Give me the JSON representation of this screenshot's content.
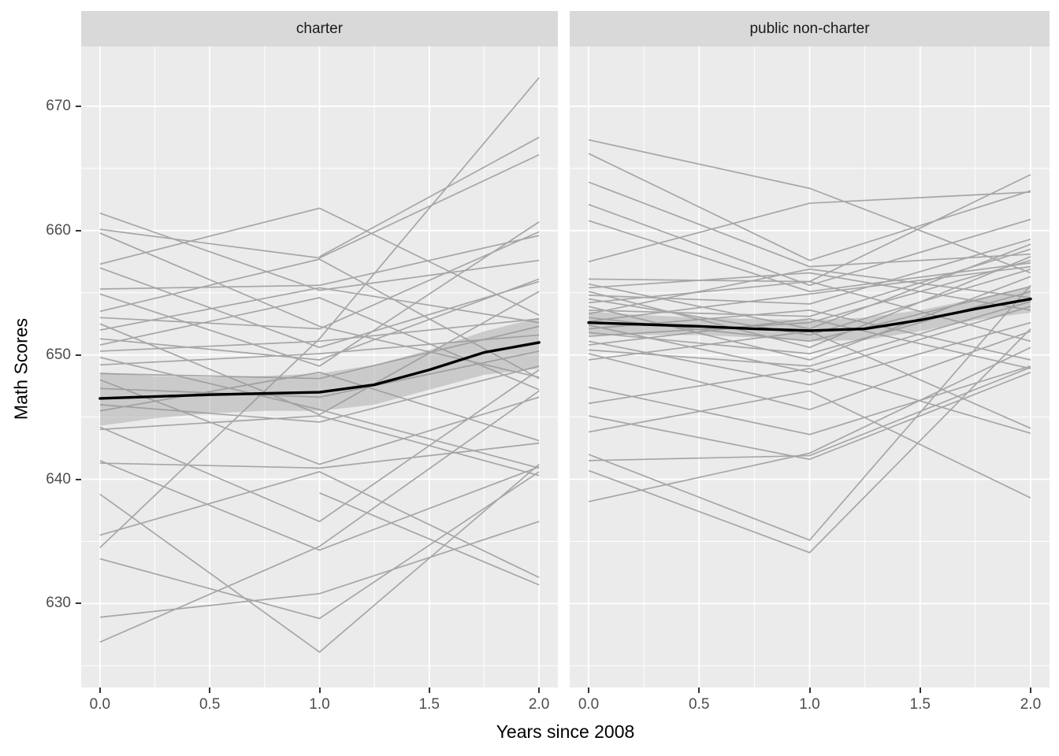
{
  "chart_data": {
    "type": "line",
    "title": "",
    "xlabel": "Years since 2008",
    "ylabel": "Math Scores",
    "legend": "none",
    "grid": "on",
    "x_ticks": {
      "values": [
        0.0,
        0.5,
        1.0,
        1.5,
        2.0
      ],
      "labels": [
        "0.0",
        "0.5",
        "1.0",
        "1.5",
        "2.0"
      ]
    },
    "y_ticks": {
      "values": [
        630,
        640,
        650,
        660,
        670
      ],
      "labels": [
        "630",
        "640",
        "650",
        "660",
        "670"
      ]
    },
    "x_minor": [
      0.25,
      0.75,
      1.25,
      1.75
    ],
    "y_minor": [
      625,
      635,
      645,
      655,
      665
    ],
    "xlim": [
      -0.0857,
      2.0857
    ],
    "ylim": [
      623.25,
      674.81
    ],
    "styles": {
      "panel_bg": "#EBEBEB",
      "strip_bg": "#D9D9D9",
      "grid_color": "#FFFFFF",
      "trajectory_color": "#A6A6A6",
      "smooth_color": "#000000",
      "ribbon_color": "#999999",
      "ribbon_opacity": 0.4,
      "tick_color": "#333333",
      "tick_label_color": "#4D4D4D"
    },
    "facets": [
      {
        "label": "charter",
        "smooth": {
          "x": [
            0,
            0.25,
            0.5,
            0.75,
            1.0,
            1.25,
            1.5,
            1.75,
            2.0
          ],
          "y": [
            646.5,
            646.65,
            646.8,
            646.9,
            647.0,
            647.6,
            648.8,
            650.2,
            651.0
          ],
          "upper": [
            648.6,
            648.3,
            648.2,
            648.3,
            648.5,
            649.2,
            650.4,
            651.9,
            653.0
          ],
          "lower": [
            644.3,
            644.9,
            645.3,
            645.5,
            645.5,
            646.0,
            647.2,
            648.4,
            648.9
          ]
        },
        "lines": [
          {
            "x": [
              0,
              1,
              2
            ],
            "y": [
              661.4,
              655.2,
              657.6
            ]
          },
          {
            "x": [
              0,
              1,
              2
            ],
            "y": [
              660.1,
              657.8,
              666.1
            ]
          },
          {
            "x": [
              0,
              1,
              2
            ],
            "y": [
              659.8,
              652.3,
              648.2
            ]
          },
          {
            "x": [
              0,
              1,
              2
            ],
            "y": [
              657.3,
              661.8,
              653.2
            ]
          },
          {
            "x": [
              0,
              1,
              2
            ],
            "y": [
              657.0,
              650.6,
              655.9
            ]
          },
          {
            "x": [
              0,
              1,
              2
            ],
            "y": [
              655.3,
              655.6,
              659.6
            ]
          },
          {
            "x": [
              0,
              1,
              2
            ],
            "y": [
              654.9,
              649.1,
              660.7
            ]
          },
          {
            "x": [
              0,
              1,
              2
            ],
            "y": [
              653.5,
              657.7,
              648.1
            ]
          },
          {
            "x": [
              0,
              1,
              2
            ],
            "y": [
              653.0,
              652.1,
              659.9
            ]
          },
          {
            "x": [
              0,
              1,
              2
            ],
            "y": [
              652.5,
              645.2,
              655.1
            ]
          },
          {
            "x": [
              0,
              1,
              2
            ],
            "y": [
              652.0,
              655.4,
              652.6
            ]
          },
          {
            "x": [
              0,
              1,
              2
            ],
            "y": [
              651.3,
              649.6,
              656.1
            ]
          },
          {
            "x": [
              0,
              1,
              2
            ],
            "y": [
              650.8,
              654.6,
              647.2
            ]
          },
          {
            "x": [
              0,
              1,
              2
            ],
            "y": [
              650.3,
              651.1,
              652.9
            ]
          },
          {
            "x": [
              0,
              1,
              2
            ],
            "y": [
              649.8,
              645.6,
              640.9
            ]
          },
          {
            "x": [
              0,
              1,
              2
            ],
            "y": [
              649.2,
              650.1,
              651.6
            ]
          },
          {
            "x": [
              0,
              1,
              2
            ],
            "y": [
              648.5,
              648.1,
              652.3
            ]
          },
          {
            "x": [
              0,
              1,
              2
            ],
            "y": [
              648.0,
              641.2,
              646.6
            ]
          },
          {
            "x": [
              0,
              1,
              2
            ],
            "y": [
              647.3,
              646.6,
              650.3
            ]
          },
          {
            "x": [
              0,
              1,
              2
            ],
            "y": [
              646.0,
              644.6,
              649.1
            ]
          },
          {
            "x": [
              0,
              1,
              2
            ],
            "y": [
              645.5,
              648.6,
              643.1
            ]
          },
          {
            "x": [
              0,
              1,
              2
            ],
            "y": [
              644.2,
              636.6,
              648.8
            ]
          },
          {
            "x": [
              0,
              1,
              2
            ],
            "y": [
              644.0,
              645.1,
              640.3
            ]
          },
          {
            "x": [
              0,
              1,
              2
            ],
            "y": [
              641.5,
              634.3,
              641.0
            ]
          },
          {
            "x": [
              0,
              1,
              2
            ],
            "y": [
              641.3,
              640.9,
              642.9
            ]
          },
          {
            "x": [
              0,
              1,
              2
            ],
            "y": [
              638.8,
              626.1,
              641.2
            ]
          },
          {
            "x": [
              0,
              1,
              2
            ],
            "y": [
              635.5,
              640.6,
              632.1
            ]
          },
          {
            "x": [
              0,
              1,
              2
            ],
            "y": [
              634.5,
              651.3,
              672.3
            ]
          },
          {
            "x": [
              0,
              1,
              2
            ],
            "y": [
              633.6,
              628.8,
              640.6
            ]
          },
          {
            "x": [
              0,
              1,
              2
            ],
            "y": [
              628.9,
              630.8,
              636.6
            ]
          },
          {
            "x": [
              0,
              1,
              2
            ],
            "y": [
              626.9,
              634.6,
              647.1
            ]
          },
          {
            "x": [
              1,
              2
            ],
            "y": [
              638.9,
              631.5
            ]
          },
          {
            "x": [
              1,
              2
            ],
            "y": [
              657.9,
              667.5
            ]
          }
        ]
      },
      {
        "label": "public non-charter",
        "smooth": {
          "x": [
            0,
            0.25,
            0.5,
            0.75,
            1.0,
            1.25,
            1.5,
            1.75,
            2.0
          ],
          "y": [
            652.6,
            652.45,
            652.3,
            652.1,
            651.95,
            652.1,
            652.8,
            653.7,
            654.5
          ],
          "upper": [
            653.5,
            653.2,
            653.0,
            652.9,
            652.8,
            653.0,
            653.6,
            654.5,
            655.5
          ],
          "lower": [
            651.6,
            651.6,
            651.6,
            651.4,
            651.1,
            651.2,
            651.9,
            652.8,
            653.4
          ]
        },
        "lines": [
          {
            "x": [
              0,
              1,
              2
            ],
            "y": [
              667.3,
              663.4,
              656.6
            ]
          },
          {
            "x": [
              0,
              1,
              2
            ],
            "y": [
              666.2,
              657.6,
              663.2
            ]
          },
          {
            "x": [
              0,
              1,
              2
            ],
            "y": [
              663.9,
              657.1,
              658.1
            ]
          },
          {
            "x": [
              0,
              1,
              2
            ],
            "y": [
              662.1,
              655.6,
              660.9
            ]
          },
          {
            "x": [
              0,
              1,
              2
            ],
            "y": [
              660.8,
              655.1,
              657.4
            ]
          },
          {
            "x": [
              0,
              1,
              2
            ],
            "y": [
              657.5,
              662.2,
              663.1
            ]
          },
          {
            "x": [
              0,
              1,
              2
            ],
            "y": [
              656.1,
              655.9,
              664.5
            ]
          },
          {
            "x": [
              0,
              1,
              2
            ],
            "y": [
              655.7,
              652.1,
              658.9
            ]
          },
          {
            "x": [
              0,
              1,
              2
            ],
            "y": [
              655.4,
              656.6,
              653.6
            ]
          },
          {
            "x": [
              0,
              1,
              2
            ],
            "y": [
              655.1,
              650.6,
              657.9
            ]
          },
          {
            "x": [
              0,
              1,
              2
            ],
            "y": [
              654.8,
              654.1,
              659.3
            ]
          },
          {
            "x": [
              0,
              1,
              2
            ],
            "y": [
              654.5,
              651.6,
              656.9
            ]
          },
          {
            "x": [
              0,
              1,
              2
            ],
            "y": [
              654.2,
              655.9,
              651.1
            ]
          },
          {
            "x": [
              0,
              1,
              2
            ],
            "y": [
              653.9,
              649.6,
              656.3
            ]
          },
          {
            "x": [
              0,
              1,
              2
            ],
            "y": [
              653.6,
              653.1,
              658.5
            ]
          },
          {
            "x": [
              0,
              1,
              2
            ],
            "y": [
              653.3,
              656.9,
              654.6
            ]
          },
          {
            "x": [
              0,
              1,
              2
            ],
            "y": [
              653.0,
              651.1,
              655.5
            ]
          },
          {
            "x": [
              0,
              1,
              2
            ],
            "y": [
              652.7,
              654.9,
              657.1
            ]
          },
          {
            "x": [
              0,
              1,
              2
            ],
            "y": [
              652.4,
              648.6,
              653.9
            ]
          },
          {
            "x": [
              0,
              1,
              2
            ],
            "y": [
              652.1,
              653.6,
              649.6
            ]
          },
          {
            "x": [
              0,
              1,
              2
            ],
            "y": [
              651.8,
              650.1,
              655.1
            ]
          },
          {
            "x": [
              0,
              1,
              2
            ],
            "y": [
              651.5,
              652.6,
              657.6
            ]
          },
          {
            "x": [
              0,
              1,
              2
            ],
            "y": [
              651.1,
              647.6,
              652.6
            ]
          },
          {
            "x": [
              0,
              1,
              2
            ],
            "y": [
              650.8,
              652.9,
              648.9
            ]
          },
          {
            "x": [
              0,
              1,
              2
            ],
            "y": [
              650.4,
              649.1,
              654.3
            ]
          },
          {
            "x": [
              0,
              1,
              2
            ],
            "y": [
              650.1,
              645.6,
              651.9
            ]
          },
          {
            "x": [
              0,
              1,
              2
            ],
            "y": [
              649.6,
              651.9,
              644.1
            ]
          },
          {
            "x": [
              0,
              1,
              2
            ],
            "y": [
              647.4,
              643.6,
              649.1
            ]
          },
          {
            "x": [
              0,
              1,
              2
            ],
            "y": [
              646.1,
              648.9,
              643.7
            ]
          },
          {
            "x": [
              0,
              1,
              2
            ],
            "y": [
              645.1,
              641.6,
              648.6
            ]
          },
          {
            "x": [
              0,
              1,
              2
            ],
            "y": [
              643.8,
              647.1,
              638.5
            ]
          },
          {
            "x": [
              0,
              1,
              2
            ],
            "y": [
              642.0,
              635.1,
              655.6
            ]
          },
          {
            "x": [
              0,
              1,
              2
            ],
            "y": [
              641.5,
              641.9,
              649.0
            ]
          },
          {
            "x": [
              0,
              1,
              2
            ],
            "y": [
              640.7,
              634.1,
              652.1
            ]
          },
          {
            "x": [
              0,
              1,
              2
            ],
            "y": [
              638.2,
              642.1,
              650.6
            ]
          }
        ]
      }
    ]
  }
}
